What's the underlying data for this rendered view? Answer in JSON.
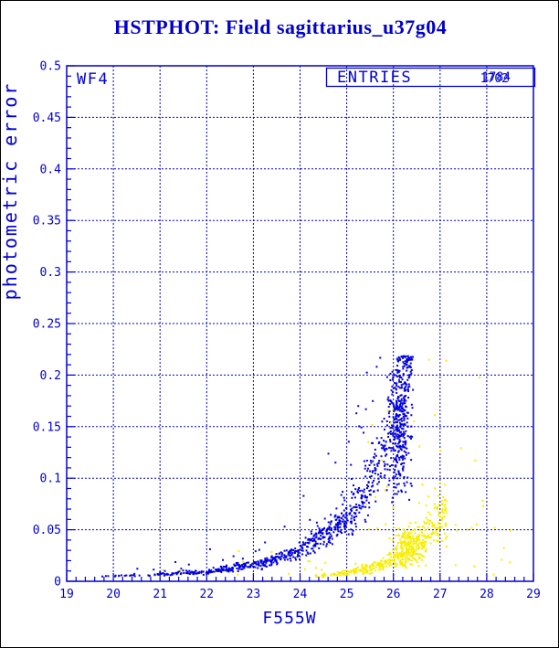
{
  "window": {
    "chip_label": "WF4"
  },
  "colors": {
    "accent_blue": "#0000d2",
    "title_blue": "#0000cc",
    "points_blue": "#0000e0",
    "points_yellow": "#f8ee00",
    "background": "#ffffff",
    "border": "#000000"
  },
  "chart_data": {
    "type": "scatter",
    "title": "HSTPHOT: Field sagittarius_u37g04",
    "xlabel": "F555W",
    "ylabel": "photometric error",
    "xlim": [
      19,
      29
    ],
    "ylim": [
      0,
      0.5
    ],
    "grid": "dashed blue lines at every major tick",
    "legend_position": "none",
    "axes": {
      "x_major_step": 1,
      "x_minor_step": 0.2,
      "y_major_step": 0.05,
      "y_minor_step": 0.01,
      "x_tick_labels": [
        "19",
        "20",
        "21",
        "22",
        "23",
        "24",
        "25",
        "26",
        "27",
        "28",
        "29"
      ],
      "y_tick_labels": [
        "0",
        "0.05",
        "0.1",
        "0.15",
        "0.2",
        "0.25",
        "0.3",
        "0.35",
        "0.4",
        "0.45",
        "0.5"
      ]
    },
    "annotations": {
      "chip_label": "WF4",
      "entries_label": "ENTRIES",
      "entries_values": [
        "1702",
        "1784"
      ],
      "entries_note": "two counts overprinted in the ENTRIES box"
    },
    "series": [
      {
        "name": "blue-points",
        "color": "#0000e0",
        "entries": "1702",
        "trend_ridge": [
          [
            19.15,
            0.0045
          ],
          [
            20,
            0.005
          ],
          [
            21,
            0.0065
          ],
          [
            22,
            0.0095
          ],
          [
            23,
            0.016
          ],
          [
            23.5,
            0.021
          ],
          [
            24,
            0.03
          ],
          [
            24.5,
            0.045
          ],
          [
            25,
            0.062
          ],
          [
            25.3,
            0.08
          ],
          [
            25.6,
            0.105
          ],
          [
            25.9,
            0.135
          ],
          [
            26.1,
            0.165
          ],
          [
            26.25,
            0.19
          ],
          [
            26.42,
            0.21
          ]
        ],
        "y_ceiling": 0.2185,
        "band": {
          "n": 850,
          "x0": 19.15,
          "x1": 26.42,
          "x_bias_exp": 0.42,
          "rel_spread": [
            0.1,
            0.16
          ],
          "out_frac": 0.07,
          "out_mult": [
            1.3,
            2.8
          ]
        },
        "blobs": [
          {
            "cx": 26.15,
            "cy": 0.155,
            "sx": 0.1,
            "sy": 0.035,
            "n": 300
          }
        ],
        "sprinkles": []
      },
      {
        "name": "yellow-points",
        "color": "#f8ee00",
        "entries": "1784",
        "trend_ridge": [
          [
            24.2,
            0.0045
          ],
          [
            24.6,
            0.006
          ],
          [
            25,
            0.0085
          ],
          [
            25.4,
            0.012
          ],
          [
            25.8,
            0.017
          ],
          [
            26.1,
            0.023
          ],
          [
            26.4,
            0.031
          ],
          [
            26.7,
            0.043
          ],
          [
            27.0,
            0.06
          ],
          [
            27.15,
            0.07
          ]
        ],
        "y_ceiling": 0.45,
        "band": {
          "n": 380,
          "x0": 24.2,
          "x1": 27.15,
          "x_bias_exp": 0.55,
          "rel_spread": [
            0.15,
            0.22
          ],
          "out_frac": 0.05,
          "out_mult": [
            1.3,
            2.2
          ]
        },
        "blobs": [
          {
            "cx": 26.35,
            "cy": 0.034,
            "sx": 0.17,
            "sy": 0.009,
            "n": 170
          }
        ],
        "sprinkles": [
          {
            "x0": 21.0,
            "x1": 25.2,
            "y0": 0.006,
            "y1": 0.04,
            "n": 16,
            "pow": 1.5
          },
          {
            "x0": 25.4,
            "x1": 28.2,
            "y0": 0.05,
            "y1": 0.215,
            "n": 38,
            "pow": 1.7
          },
          {
            "x0": 27.2,
            "x1": 28.7,
            "y0": 0.006,
            "y1": 0.05,
            "n": 8,
            "pow": 1.0
          }
        ]
      }
    ]
  }
}
